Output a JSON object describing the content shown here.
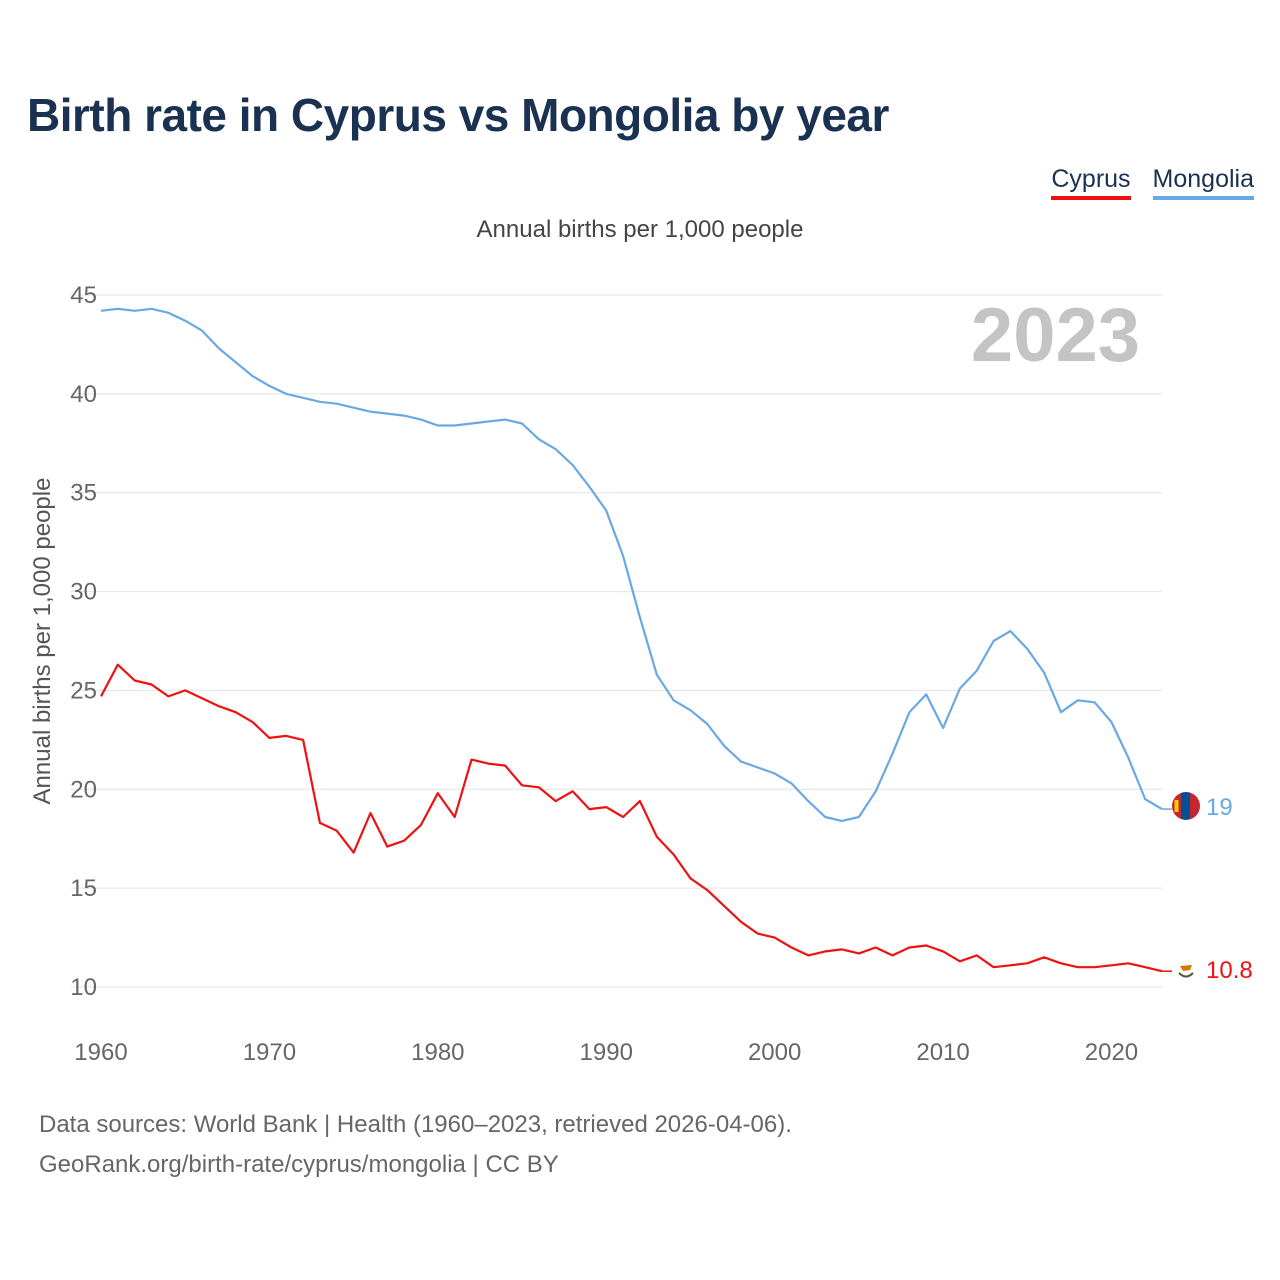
{
  "title": "Birth rate in Cyprus vs Mongolia by year",
  "subtitle": "Annual births per 1,000 people",
  "year_label": "2023",
  "legend": {
    "cyprus": "Cyprus",
    "mongolia": "Mongolia"
  },
  "footer": {
    "line1": "Data sources: World Bank | Health (1960–2023, retrieved 2026-04-06).",
    "line2": "GeoRank.org/birth-rate/cyprus/mongolia | CC BY"
  },
  "colors": {
    "cyprus": "#ee1111",
    "mongolia": "#6aa8e4",
    "title": "#1a3152"
  },
  "chart_data": {
    "type": "line",
    "title": "Birth rate in Cyprus vs Mongolia by year",
    "xlabel": "",
    "ylabel": "Annual births per 1,000 people",
    "xlim": [
      1960,
      2023
    ],
    "ylim": [
      10,
      45
    ],
    "yticks": [
      10,
      15,
      20,
      25,
      30,
      35,
      40,
      45
    ],
    "xticks": [
      1960,
      1970,
      1980,
      1990,
      2000,
      2010,
      2020
    ],
    "grid": true,
    "legend": "top-right",
    "x": [
      1960,
      1961,
      1962,
      1963,
      1964,
      1965,
      1966,
      1967,
      1968,
      1969,
      1970,
      1971,
      1972,
      1973,
      1974,
      1975,
      1976,
      1977,
      1978,
      1979,
      1980,
      1981,
      1982,
      1983,
      1984,
      1985,
      1986,
      1987,
      1988,
      1989,
      1990,
      1991,
      1992,
      1993,
      1994,
      1995,
      1996,
      1997,
      1998,
      1999,
      2000,
      2001,
      2002,
      2003,
      2004,
      2005,
      2006,
      2007,
      2008,
      2009,
      2010,
      2011,
      2012,
      2013,
      2014,
      2015,
      2016,
      2017,
      2018,
      2019,
      2020,
      2021,
      2022,
      2023
    ],
    "series": [
      {
        "name": "Cyprus",
        "color": "#ee1111",
        "end_label": "10.8",
        "values": [
          24.7,
          26.3,
          25.5,
          25.3,
          24.7,
          25.0,
          24.6,
          24.2,
          23.9,
          23.4,
          22.6,
          22.7,
          22.5,
          18.3,
          17.9,
          16.8,
          18.8,
          17.1,
          17.4,
          18.2,
          19.8,
          18.6,
          21.5,
          21.3,
          21.2,
          20.2,
          20.1,
          19.4,
          19.9,
          19.0,
          19.1,
          18.6,
          19.4,
          17.6,
          16.7,
          15.5,
          14.9,
          14.1,
          13.3,
          12.7,
          12.5,
          12.0,
          11.6,
          11.8,
          11.9,
          11.7,
          12.0,
          11.6,
          12.0,
          12.1,
          11.8,
          11.3,
          11.6,
          11.0,
          11.1,
          11.2,
          11.5,
          11.2,
          11.0,
          11.0,
          11.1,
          11.2,
          11.0,
          10.8
        ]
      },
      {
        "name": "Mongolia",
        "color": "#6aa8e4",
        "end_label": "19",
        "values": [
          44.2,
          44.3,
          44.2,
          44.3,
          44.1,
          43.7,
          43.2,
          42.3,
          41.6,
          40.9,
          40.4,
          40.0,
          39.8,
          39.6,
          39.5,
          39.3,
          39.1,
          39.0,
          38.9,
          38.7,
          38.4,
          38.4,
          38.5,
          38.6,
          38.7,
          38.5,
          37.7,
          37.2,
          36.4,
          35.3,
          34.1,
          31.8,
          28.7,
          25.8,
          24.5,
          24.0,
          23.3,
          22.2,
          21.4,
          21.1,
          20.8,
          20.3,
          19.4,
          18.6,
          18.4,
          18.6,
          19.9,
          21.8,
          23.9,
          24.8,
          23.1,
          25.1,
          26.0,
          27.5,
          28.0,
          27.1,
          25.9,
          23.9,
          24.5,
          24.4,
          23.4,
          21.6,
          19.5,
          19.0
        ]
      }
    ]
  }
}
